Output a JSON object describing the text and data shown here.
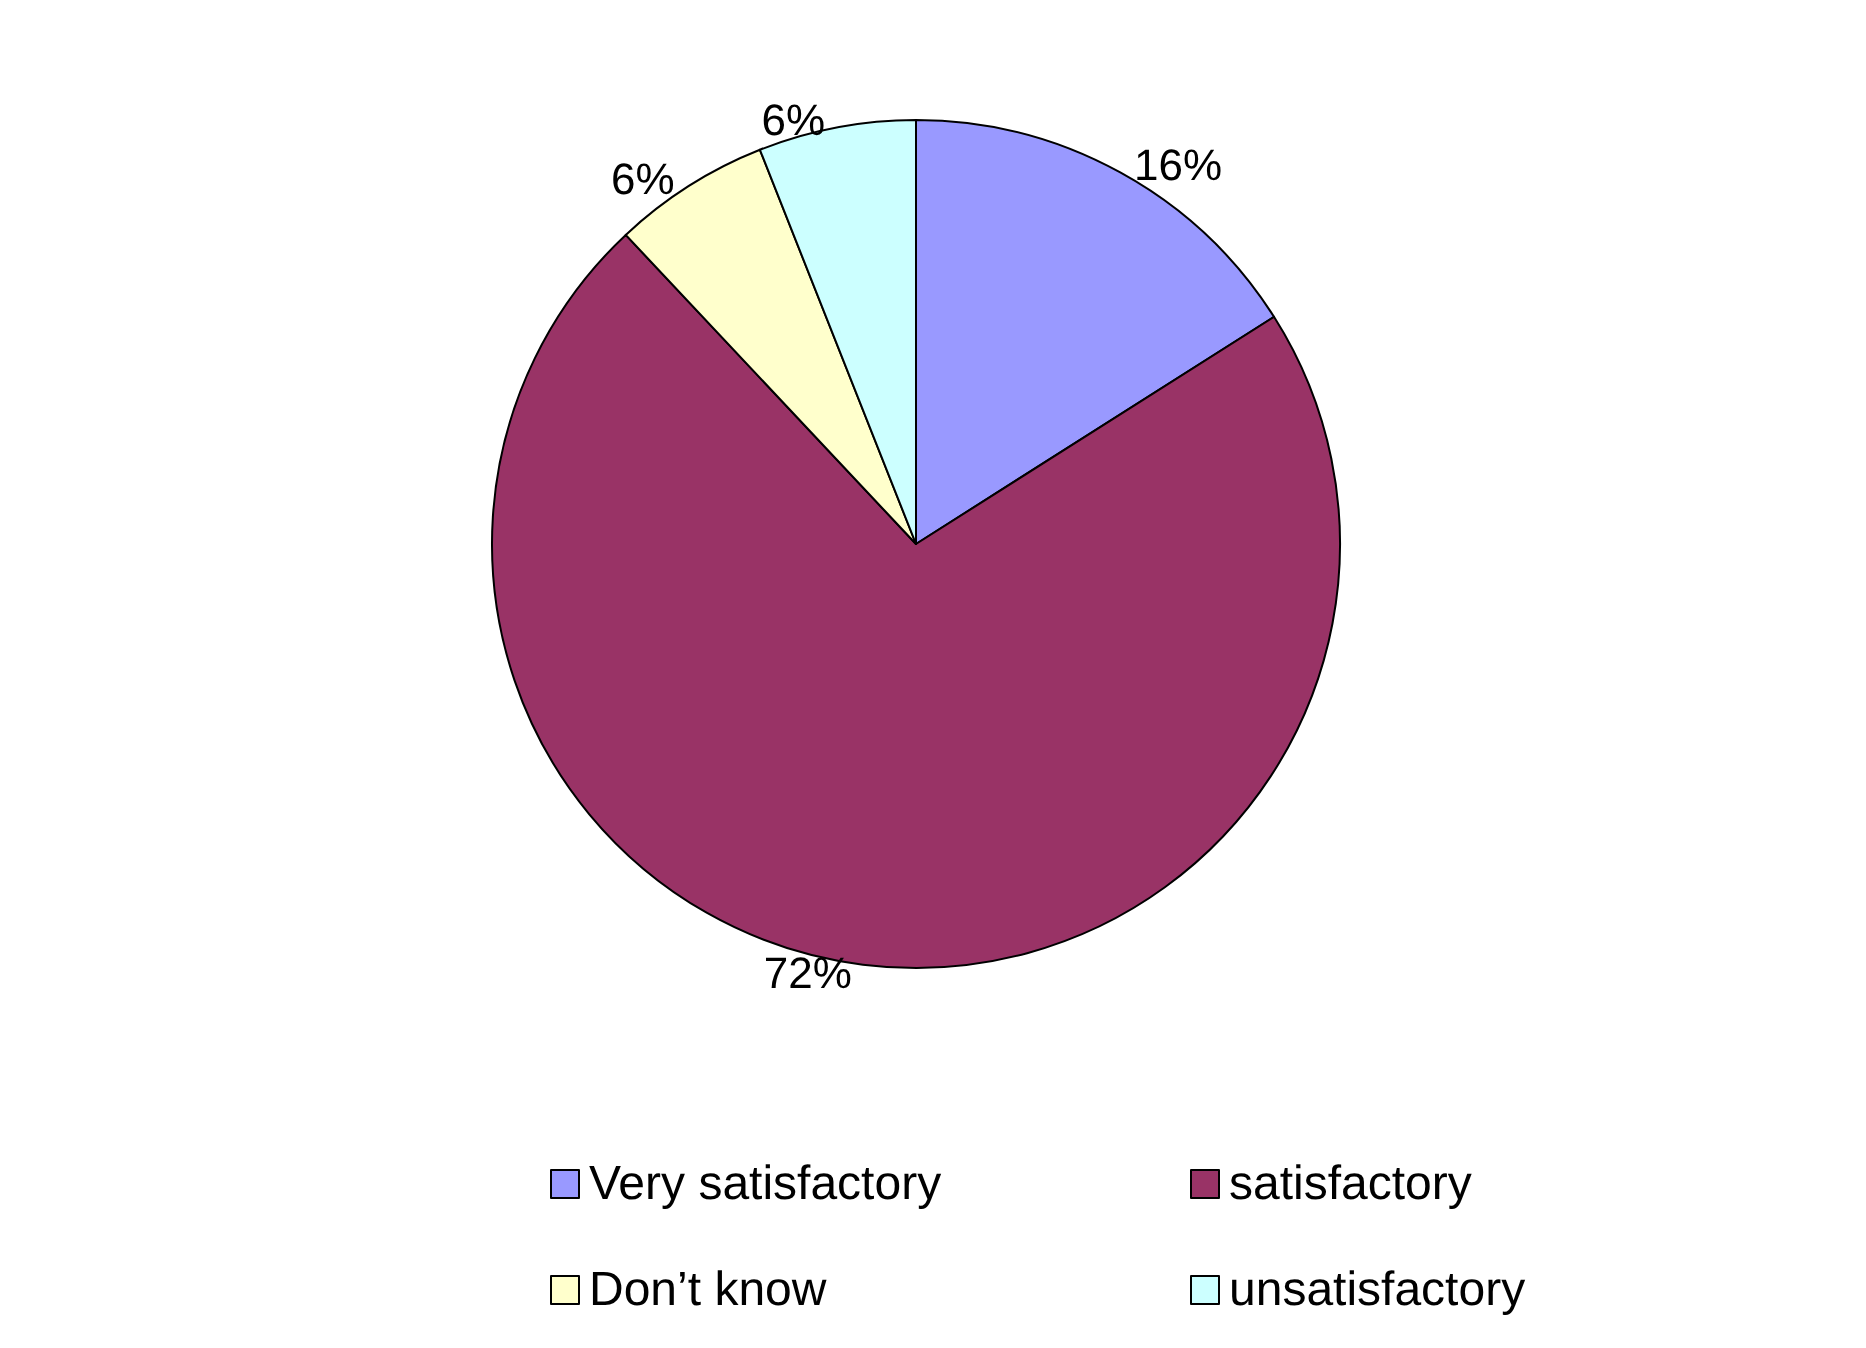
{
  "chart_data": {
    "type": "pie",
    "categories": [
      "Very satisfactory",
      "satisfactory",
      "Don’t know",
      "unsatisfactory"
    ],
    "values": [
      16,
      72,
      6,
      6
    ],
    "value_labels": [
      "16%",
      "72%",
      "6%",
      "6%"
    ],
    "colors": [
      "#9999ff",
      "#993366",
      "#ffffcc",
      "#ccffff"
    ],
    "legend": "bottom"
  }
}
